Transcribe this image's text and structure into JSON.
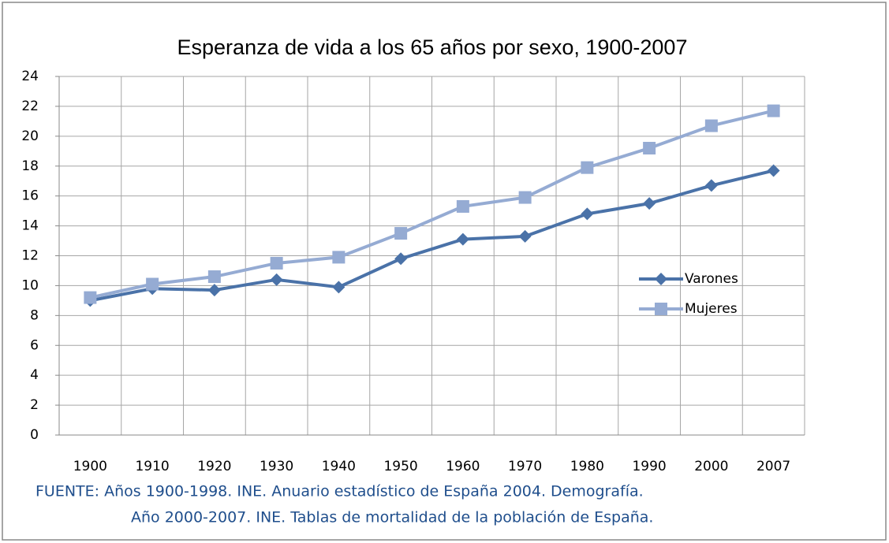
{
  "chart_data": {
    "type": "line",
    "title": "Esperanza de vida a los 65 años por sexo, 1900-2007",
    "categories": [
      "1900",
      "1910",
      "1920",
      "1930",
      "1940",
      "1950",
      "1960",
      "1970",
      "1980",
      "1990",
      "2000",
      "2007"
    ],
    "series": [
      {
        "name": "Varones",
        "color": "#4a72a8",
        "marker": "diamond",
        "values": [
          9.0,
          9.8,
          9.7,
          10.4,
          9.9,
          11.8,
          13.1,
          13.3,
          14.8,
          15.5,
          16.7,
          17.7
        ]
      },
      {
        "name": "Mujeres",
        "color": "#95abd3",
        "marker": "square",
        "values": [
          9.2,
          10.1,
          10.6,
          11.5,
          11.9,
          13.5,
          15.3,
          15.9,
          17.9,
          19.2,
          20.7,
          21.7
        ]
      }
    ],
    "ylim": [
      0,
      24
    ],
    "yticks": [
      0,
      2,
      4,
      6,
      8,
      10,
      12,
      14,
      16,
      18,
      20,
      22,
      24
    ],
    "grid": true,
    "legend": "right",
    "source": [
      "FUENTE:  Años 1900-1998. INE. Anuario estadístico de España 2004. Demografía.",
      "Año 2000-2007. INE. Tablas de mortalidad de la población de España."
    ]
  }
}
